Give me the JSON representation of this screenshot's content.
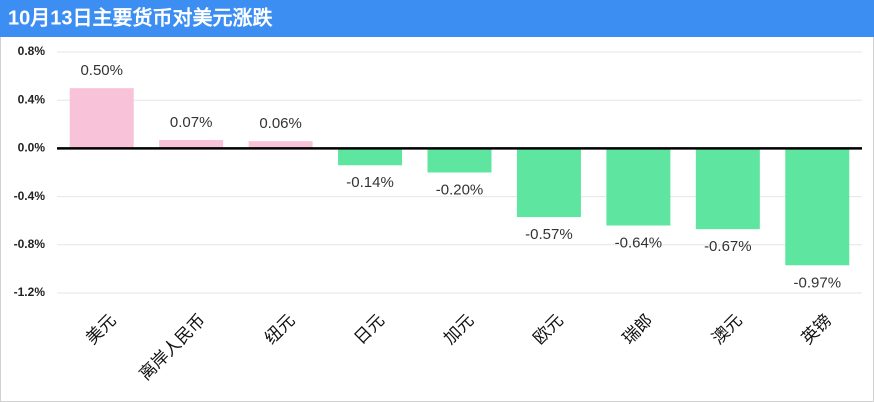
{
  "chart_data": {
    "type": "bar",
    "title": "10月13日主要货币对美元涨跌",
    "categories": [
      "美元",
      "离岸人民币",
      "纽元",
      "日元",
      "加元",
      "欧元",
      "瑞郎",
      "澳元",
      "英镑"
    ],
    "values": [
      0.5,
      0.07,
      0.06,
      -0.14,
      -0.2,
      -0.57,
      -0.64,
      -0.67,
      -0.97
    ],
    "value_labels": [
      "0.50%",
      "0.07%",
      "0.06%",
      "-0.14%",
      "-0.20%",
      "-0.57%",
      "-0.64%",
      "-0.67%",
      "-0.97%"
    ],
    "positive_color": "#f8c3d9",
    "negative_color": "#5ee6a0",
    "ylim": [
      -1.2,
      0.8
    ],
    "yticks": [
      {
        "value": -1.2,
        "label": "-1.2%"
      },
      {
        "value": -0.8,
        "label": "-0.8%"
      },
      {
        "value": -0.4,
        "label": "-0.4%"
      },
      {
        "value": 0,
        "label": "0.0%"
      },
      {
        "value": 0.4,
        "label": "0.4%"
      },
      {
        "value": 0.8,
        "label": "0.8%"
      }
    ],
    "grid": true
  }
}
